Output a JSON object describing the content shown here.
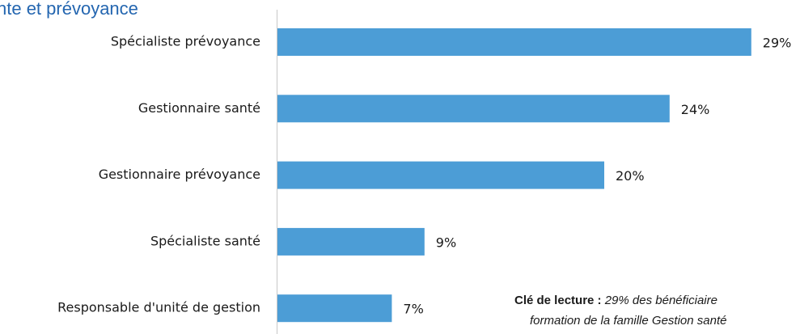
{
  "chart_data": {
    "type": "bar",
    "orientation": "horizontal",
    "title": "nte et prévoyance",
    "categories": [
      "Spécialiste prévoyance",
      "Gestionnaire santé",
      "Gestionnaire prévoyance",
      "Spécialiste santé",
      "Responsable d'unité de gestion"
    ],
    "values": [
      29,
      24,
      20,
      9,
      7
    ],
    "value_labels": [
      "29%",
      "24%",
      "20%",
      "9%",
      "7%"
    ],
    "color": "#4c9dd6",
    "annotation": {
      "lead": "Clé de lecture :",
      "lines": [
        "29% des bénéficiaire",
        "formation de la famille Gestion santé"
      ]
    }
  }
}
